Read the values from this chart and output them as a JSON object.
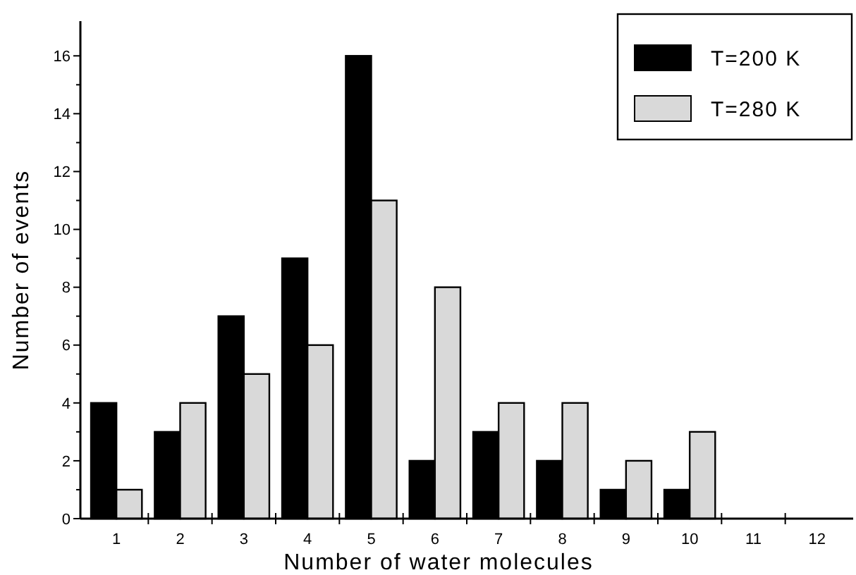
{
  "chart_data": {
    "type": "bar",
    "xlabel": "Number of water molecules",
    "ylabel": "Number of events",
    "categories": [
      "1",
      "2",
      "3",
      "4",
      "5",
      "6",
      "7",
      "8",
      "9",
      "10",
      "11",
      "12"
    ],
    "series": [
      {
        "name": "T=200 K",
        "color": "#000000",
        "values": [
          4,
          3,
          7,
          9,
          16,
          2,
          3,
          2,
          1,
          1,
          0,
          0
        ]
      },
      {
        "name": "T=280 K",
        "color": "#d9d9d9",
        "values": [
          1,
          4,
          5,
          6,
          11,
          8,
          4,
          4,
          2,
          3,
          0,
          0
        ]
      }
    ],
    "ylim": [
      0,
      17.2
    ],
    "yticks": [
      0,
      2,
      4,
      6,
      8,
      10,
      12,
      14,
      16
    ],
    "grid": false,
    "legend": "top right"
  }
}
